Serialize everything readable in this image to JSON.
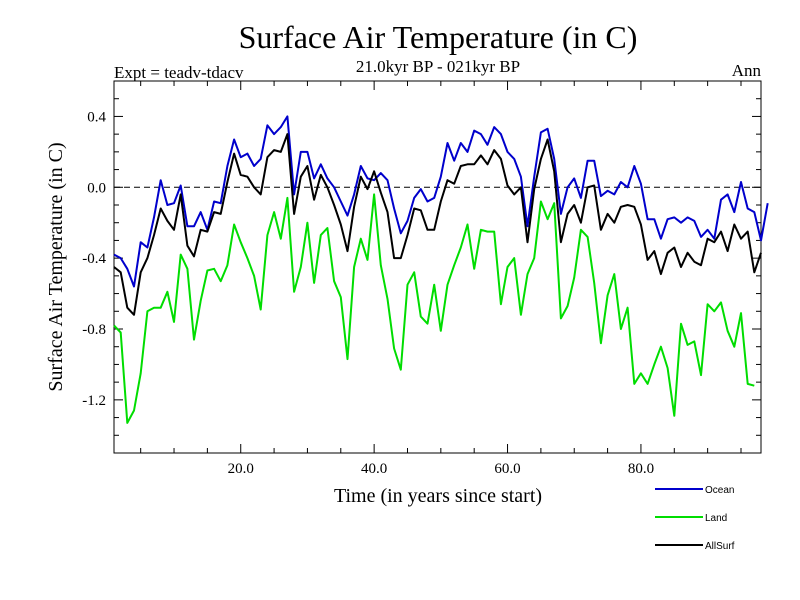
{
  "chart_data": {
    "type": "line",
    "title": "Surface Air Temperature (in C)",
    "subtitle": "21.0kyr BP - 021kyr BP",
    "left_label": "Expt = teadv-tdacv",
    "right_label": "Ann",
    "xlabel": "Time (in years since start)",
    "ylabel": "Surface Air Temperature (in C)",
    "xlim": [
      1,
      98
    ],
    "ylim": [
      -1.5,
      0.6
    ],
    "xticks": [
      20,
      40,
      60,
      80
    ],
    "xtick_labels": [
      "20.0",
      "40.0",
      "60.0",
      "80.0"
    ],
    "yticks": [
      0.4,
      0.0,
      -0.4,
      -0.8,
      -1.2
    ],
    "ytick_labels": [
      "0.4",
      "0.0",
      "-0.4",
      "-0.8",
      "-1.2"
    ],
    "zero_line": 0.0,
    "series": [
      {
        "name": "Ocean",
        "color": "#0000cc",
        "values": [
          -0.38,
          -0.4,
          -0.46,
          -0.56,
          -0.31,
          -0.34,
          -0.17,
          0.04,
          -0.1,
          -0.09,
          0.01,
          -0.22,
          -0.22,
          -0.14,
          -0.24,
          -0.08,
          -0.09,
          0.12,
          0.27,
          0.17,
          0.19,
          0.12,
          0.16,
          0.35,
          0.3,
          0.34,
          0.4,
          -0.04,
          0.2,
          0.2,
          0.05,
          0.13,
          0.05,
          0.0,
          -0.08,
          -0.16,
          -0.04,
          0.12,
          0.05,
          0.04,
          0.08,
          0.04,
          -0.12,
          -0.26,
          -0.19,
          -0.06,
          -0.01,
          -0.08,
          -0.06,
          0.06,
          0.25,
          0.15,
          0.25,
          0.2,
          0.32,
          0.3,
          0.24,
          0.34,
          0.3,
          0.2,
          0.16,
          0.06,
          -0.22,
          0.06,
          0.31,
          0.33,
          0.16,
          -0.15,
          0.0,
          0.05,
          -0.06,
          0.15,
          0.15,
          -0.05,
          -0.02,
          -0.04,
          0.03,
          0.0,
          0.12,
          0.02,
          -0.18,
          -0.18,
          -0.29,
          -0.18,
          -0.17,
          -0.2,
          -0.17,
          -0.19,
          -0.28,
          -0.24,
          -0.29,
          -0.07,
          -0.04,
          -0.14,
          0.03,
          -0.12,
          -0.14,
          -0.3,
          -0.09
        ]
      },
      {
        "name": "Land",
        "color": "#00dd00",
        "values": [
          -0.78,
          -0.82,
          -1.33,
          -1.26,
          -1.05,
          -0.7,
          -0.68,
          -0.68,
          -0.59,
          -0.76,
          -0.38,
          -0.46,
          -0.86,
          -0.64,
          -0.47,
          -0.46,
          -0.53,
          -0.44,
          -0.21,
          -0.31,
          -0.4,
          -0.5,
          -0.69,
          -0.27,
          -0.14,
          -0.29,
          -0.06,
          -0.59,
          -0.45,
          -0.2,
          -0.54,
          -0.27,
          -0.23,
          -0.53,
          -0.62,
          -0.97,
          -0.45,
          -0.29,
          -0.41,
          -0.04,
          -0.44,
          -0.63,
          -0.91,
          -1.03,
          -0.55,
          -0.48,
          -0.73,
          -0.77,
          -0.55,
          -0.81,
          -0.55,
          -0.44,
          -0.34,
          -0.21,
          -0.46,
          -0.24,
          -0.25,
          -0.25,
          -0.66,
          -0.45,
          -0.4,
          -0.72,
          -0.49,
          -0.4,
          -0.08,
          -0.18,
          -0.09,
          -0.74,
          -0.67,
          -0.51,
          -0.24,
          -0.28,
          -0.54,
          -0.88,
          -0.61,
          -0.49,
          -0.8,
          -0.68,
          -1.11,
          -1.05,
          -1.11,
          -1.0,
          -0.9,
          -1.02,
          -1.29,
          -0.77,
          -0.89,
          -0.87,
          -1.06,
          -0.66,
          -0.7,
          -0.65,
          -0.81,
          -0.9,
          -0.71,
          -1.11,
          -1.12
        ]
      },
      {
        "name": "AllSurf",
        "color": "#000000",
        "values": [
          -0.45,
          -0.48,
          -0.68,
          -0.72,
          -0.48,
          -0.4,
          -0.27,
          -0.12,
          -0.19,
          -0.24,
          -0.04,
          -0.33,
          -0.39,
          -0.24,
          -0.25,
          -0.14,
          -0.15,
          0.03,
          0.19,
          0.07,
          0.06,
          0.0,
          -0.04,
          0.17,
          0.21,
          0.2,
          0.3,
          -0.15,
          0.06,
          0.12,
          -0.07,
          0.07,
          0.0,
          -0.1,
          -0.21,
          -0.36,
          -0.11,
          0.06,
          -0.01,
          0.09,
          -0.03,
          -0.14,
          -0.4,
          -0.4,
          -0.27,
          -0.12,
          -0.13,
          -0.24,
          -0.24,
          -0.08,
          0.04,
          0.02,
          0.12,
          0.13,
          0.13,
          0.18,
          0.13,
          0.21,
          0.16,
          0.01,
          -0.04,
          0.0,
          -0.31,
          -0.01,
          0.16,
          0.27,
          0.09,
          -0.31,
          -0.15,
          -0.1,
          -0.2,
          0.0,
          0.01,
          -0.24,
          -0.15,
          -0.2,
          -0.11,
          -0.1,
          -0.11,
          -0.21,
          -0.41,
          -0.36,
          -0.49,
          -0.37,
          -0.34,
          -0.45,
          -0.37,
          -0.42,
          -0.44,
          -0.29,
          -0.31,
          -0.25,
          -0.36,
          -0.21,
          -0.29,
          -0.25,
          -0.48,
          -0.37
        ]
      }
    ]
  }
}
